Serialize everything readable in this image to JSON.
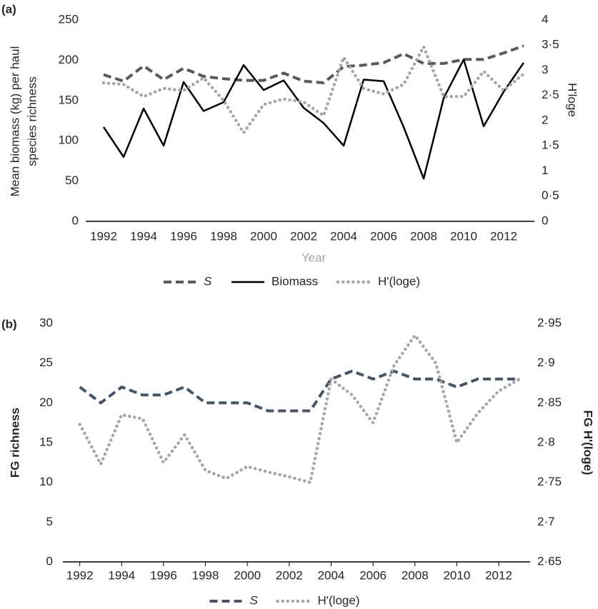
{
  "chart_data": [
    {
      "type": "line",
      "label": "(a)",
      "ylabel": [
        "Mean biomass (kg) per haul",
        "species richness"
      ],
      "y2label": "H'loge",
      "xlabel": "Year",
      "x": [
        1992,
        1993,
        1994,
        1995,
        1996,
        1997,
        1998,
        1999,
        2000,
        2001,
        2002,
        2003,
        2004,
        2005,
        2006,
        2007,
        2008,
        2009,
        2010,
        2011,
        2012,
        2013
      ],
      "xlim": [
        1991.5,
        2013.5
      ],
      "xticks": [
        1992,
        1994,
        1996,
        1998,
        2000,
        2002,
        2004,
        2006,
        2008,
        2010,
        2012
      ],
      "ylim": [
        0,
        250
      ],
      "yticks": [
        0,
        50,
        100,
        150,
        200,
        250
      ],
      "y2lim": [
        0,
        4
      ],
      "y2ticks": [
        0,
        {
          "value": 0.5,
          "label": "0·5"
        },
        1,
        {
          "value": 1.5,
          "label": "1·5"
        },
        2,
        {
          "value": 2.5,
          "label": "2·5"
        },
        3,
        {
          "value": 3.5,
          "label": "3·5"
        },
        4
      ],
      "legend": "bottom",
      "series": [
        {
          "name": "S",
          "name_italic": true,
          "color": "#595959",
          "dash": "dashed",
          "axis": "y",
          "values": [
            182,
            174,
            193,
            176,
            190,
            180,
            177,
            175,
            175,
            184,
            174,
            172,
            192,
            194,
            197,
            208,
            196,
            196,
            201,
            201,
            209,
            218
          ]
        },
        {
          "name": "Biomass",
          "color": "#000000",
          "dash": "solid",
          "axis": "y",
          "values": [
            117,
            80,
            140,
            94,
            173,
            137,
            148,
            194,
            163,
            175,
            141,
            122,
            94,
            176,
            174,
            117,
            53,
            153,
            201,
            118,
            161,
            197
          ]
        },
        {
          "name": "H'(loge)",
          "color": "#a6a6a6",
          "dash": "dotted",
          "axis": "y2",
          "values": [
            2.75,
            2.72,
            2.48,
            2.64,
            2.6,
            2.85,
            2.4,
            1.76,
            2.32,
            2.43,
            2.37,
            2.1,
            3.26,
            2.64,
            2.53,
            2.72,
            3.47,
            2.48,
            2.48,
            2.98,
            2.6,
            2.93
          ]
        }
      ]
    },
    {
      "type": "line",
      "label": "(b)",
      "ylabel": [
        "FG richness"
      ],
      "y2label": "FG H'(loge)",
      "x": [
        1992,
        1993,
        1994,
        1995,
        1996,
        1997,
        1998,
        1999,
        2000,
        2001,
        2002,
        2003,
        2004,
        2005,
        2006,
        2007,
        2008,
        2009,
        2010,
        2011,
        2012,
        2013
      ],
      "xlim": [
        1991.5,
        2013.5
      ],
      "xticks": [
        1992,
        1994,
        1996,
        1998,
        2000,
        2002,
        2004,
        2006,
        2008,
        2010,
        2012
      ],
      "xtick_marks": true,
      "ylim": [
        0,
        30
      ],
      "yticks": [
        0,
        5,
        10,
        15,
        20,
        25,
        30
      ],
      "y2lim": [
        2.65,
        2.95
      ],
      "y2ticks": [
        {
          "value": 2.65,
          "label": "2·65"
        },
        {
          "value": 2.7,
          "label": "2·7"
        },
        {
          "value": 2.75,
          "label": "2·75"
        },
        {
          "value": 2.8,
          "label": "2·8"
        },
        {
          "value": 2.85,
          "label": "2·85"
        },
        {
          "value": 2.9,
          "label": "2·9"
        },
        {
          "value": 2.95,
          "label": "2·95"
        }
      ],
      "legend": "bottom",
      "series": [
        {
          "name": "S",
          "name_italic": true,
          "color": "#44546a",
          "dash": "dashed",
          "axis": "y",
          "values": [
            22,
            20,
            22,
            21,
            21,
            22,
            20,
            20,
            20,
            19,
            19,
            19,
            23,
            24,
            23,
            24,
            23,
            23,
            22,
            23,
            23,
            23
          ]
        },
        {
          "name": "H'(loge)",
          "color": "#a6a6a6",
          "dash": "dotted",
          "axis": "y2",
          "values": [
            2.823,
            2.773,
            2.835,
            2.83,
            2.775,
            2.81,
            2.765,
            2.755,
            2.77,
            2.763,
            2.757,
            2.75,
            2.88,
            2.86,
            2.825,
            2.897,
            2.935,
            2.9,
            2.8,
            2.837,
            2.865,
            2.88
          ]
        }
      ]
    }
  ]
}
